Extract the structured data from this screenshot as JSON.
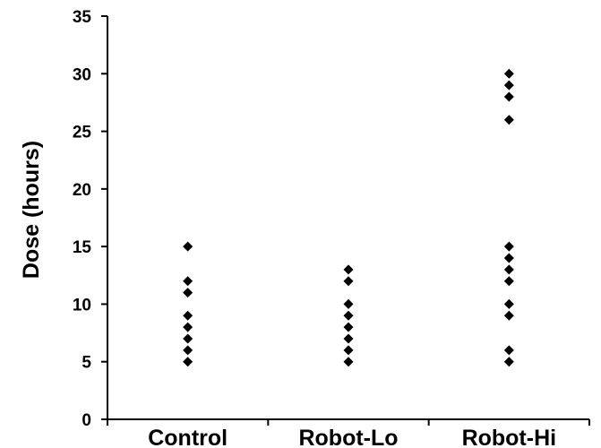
{
  "chart_data": {
    "type": "scatter",
    "title": "",
    "xlabel": "",
    "ylabel": "Dose (hours)",
    "ylim": [
      0,
      35
    ],
    "yticks": [
      0,
      5,
      10,
      15,
      20,
      25,
      30,
      35
    ],
    "grid": false,
    "categories": [
      "Control",
      "Robot-Lo",
      "Robot-Hi"
    ],
    "series": [
      {
        "category": "Control",
        "values": [
          5,
          6,
          7,
          8,
          9,
          11,
          12,
          15
        ]
      },
      {
        "category": "Robot-Lo",
        "values": [
          5,
          6,
          7,
          8,
          9,
          10,
          12,
          13
        ]
      },
      {
        "category": "Robot-Hi",
        "values": [
          5,
          6,
          9,
          10,
          12,
          13,
          14,
          15,
          26,
          28,
          29,
          30
        ]
      }
    ],
    "marker_color": "#000000"
  }
}
